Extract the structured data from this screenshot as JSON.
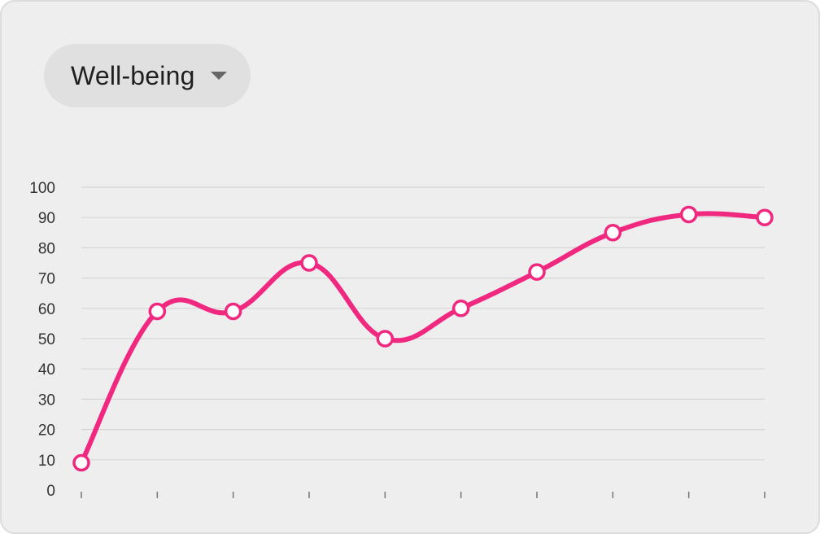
{
  "dropdown": {
    "selected": "Well-being",
    "icon": "caret-down-icon"
  },
  "colors": {
    "line": "#f0287f",
    "marker_fill": "#ffffff",
    "grid": "#d6d6d6",
    "card_background": "#eeeeee",
    "dropdown_background": "#e0e0e0"
  },
  "chart_data": {
    "type": "line",
    "title": "",
    "xlabel": "",
    "ylabel": "",
    "ylim": [
      0,
      100
    ],
    "y_ticks": [
      0,
      10,
      20,
      30,
      40,
      50,
      60,
      70,
      80,
      90,
      100
    ],
    "x": [
      1,
      2,
      3,
      4,
      5,
      6,
      7,
      8,
      9,
      10
    ],
    "x_tick_labels": [],
    "grid": true,
    "legend": "none",
    "series": [
      {
        "values": [
          9,
          59,
          59,
          75,
          50,
          60,
          72,
          85,
          91,
          90
        ]
      }
    ]
  }
}
